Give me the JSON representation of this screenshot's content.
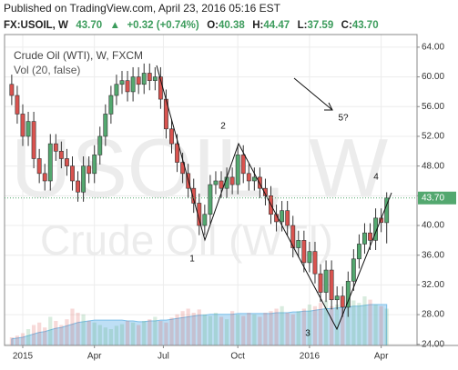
{
  "header": {
    "published": "Published on TradingView.com, April 23, 2016 05:16 EST",
    "symbol": "FX:USOIL, W",
    "price": "43.70",
    "change": "+0.32 (+0.74%)",
    "ohlc": [
      {
        "label": "O:",
        "value": "40.38"
      },
      {
        "label": "H:",
        "value": "44.47"
      },
      {
        "label": "L:",
        "value": "37.59"
      },
      {
        "label": "C:",
        "value": "43.70"
      }
    ]
  },
  "chart_data": {
    "type": "candlestick",
    "legend": [
      "Crude Oil (WTI), W, FXCM",
      "Vol (20, false)"
    ],
    "watermark": [
      "USOIL, W",
      "Crude Oil (WTI)"
    ],
    "annotations": [
      "1",
      "2",
      "3",
      "4",
      "5?"
    ],
    "up_color": "#53a86f",
    "down_color": "#d9534f",
    "xlim": [
      -1.3,
      73.5
    ],
    "xticks": [
      {
        "value": 2,
        "label": "2015"
      },
      {
        "value": 15,
        "label": "Apr"
      },
      {
        "value": 27.5,
        "label": "Jul"
      },
      {
        "value": 41,
        "label": "Oct"
      },
      {
        "value": 54,
        "label": "2016"
      },
      {
        "value": 67,
        "label": "Apr"
      }
    ],
    "ylim": [
      23.85,
      65.7
    ],
    "yticks": [
      {
        "value": 64,
        "label": "64.00"
      },
      {
        "value": 60,
        "label": "60.00"
      },
      {
        "value": 56,
        "label": "56.00"
      },
      {
        "value": 52,
        "label": "52.00"
      },
      {
        "value": 48,
        "label": "48.00"
      },
      {
        "value": 44,
        "label": "44.00"
      },
      {
        "value": 40,
        "label": "40.00"
      },
      {
        "value": 36,
        "label": "36.00"
      },
      {
        "value": 32,
        "label": "32.00"
      },
      {
        "value": 28,
        "label": "28.00"
      },
      {
        "value": 24,
        "label": "24.00"
      }
    ],
    "last_price": {
      "value": 43.7,
      "label": "43.70"
    },
    "grid": true,
    "open": [
      59,
      57.5,
      55,
      52,
      54,
      49,
      47,
      46,
      51,
      50,
      49,
      48,
      46,
      44.5,
      48,
      47,
      49.5,
      52,
      55,
      57.5,
      59,
      59.5,
      58,
      60,
      59,
      60.5,
      59.5,
      60,
      57,
      53,
      51,
      48.5,
      47,
      45,
      43,
      40,
      41.5,
      45.5,
      46,
      45,
      46.5,
      45.5,
      49.5,
      47,
      46,
      46.5,
      45,
      44,
      41.5,
      40.5,
      42,
      40,
      37,
      38,
      35,
      36.5,
      33.5,
      31,
      34,
      30,
      30.5,
      29,
      32.5,
      35.5,
      37.5,
      39,
      38,
      41,
      40.38
    ],
    "high": [
      60.3,
      58.8,
      56.3,
      55.3,
      55.3,
      50.3,
      48.3,
      52.3,
      52.3,
      51.3,
      50.3,
      49.3,
      47.3,
      49.3,
      49.3,
      50.8,
      53.3,
      56.3,
      58.8,
      60.3,
      60.8,
      60.8,
      61.3,
      61.3,
      61.8,
      61.8,
      61.3,
      61.3,
      58.3,
      54.3,
      52.3,
      49.8,
      48.3,
      46.3,
      44.3,
      42.8,
      46.8,
      47.3,
      47.3,
      47.8,
      47.8,
      50.8,
      50.8,
      48.3,
      47.8,
      47.8,
      46.3,
      45.3,
      42.8,
      43.3,
      43.3,
      41.3,
      39.3,
      39.3,
      37.8,
      37.8,
      34.8,
      35.3,
      35.3,
      31.8,
      31.8,
      33.8,
      36.8,
      38.8,
      40.3,
      40.3,
      42.3,
      42.3,
      44.47
    ],
    "low": [
      56.2,
      53.7,
      50.7,
      50.7,
      47.7,
      45.7,
      44.7,
      44.7,
      48.7,
      47.7,
      46.7,
      44.7,
      43.2,
      43.2,
      45.7,
      45.7,
      48.2,
      50.7,
      53.7,
      56.2,
      57.7,
      56.7,
      56.7,
      57.7,
      57.7,
      58.2,
      58.2,
      55.7,
      51.7,
      49.7,
      47.2,
      45.7,
      43.7,
      41.7,
      38.7,
      38.7,
      40.2,
      44.2,
      43.7,
      43.7,
      44.2,
      44.2,
      45.7,
      44.7,
      44.7,
      43.7,
      42.7,
      40.2,
      39.2,
      39.2,
      38.7,
      35.7,
      35.7,
      33.7,
      33.7,
      32.2,
      29.7,
      29.7,
      28.7,
      28.7,
      27.7,
      27.7,
      31.2,
      34.2,
      36.2,
      36.7,
      36.7,
      39.1,
      37.59
    ],
    "close": [
      57.5,
      55,
      52,
      54,
      49,
      47,
      46,
      51,
      50,
      49,
      48,
      46,
      44.5,
      48,
      47,
      49.5,
      52,
      55,
      57.5,
      59,
      59.5,
      58,
      60,
      59,
      60.5,
      59.5,
      60,
      57,
      53,
      51,
      48.5,
      47,
      45,
      43,
      40,
      41.5,
      45.5,
      46,
      45,
      46.5,
      45.5,
      49.5,
      47,
      46,
      46.5,
      45,
      44,
      41.5,
      40.5,
      42,
      40,
      37,
      38,
      35,
      36.5,
      33.5,
      31,
      34,
      30,
      30.5,
      29,
      32.5,
      35.5,
      37.5,
      39,
      38,
      41,
      40.4,
      43.7
    ],
    "volume": [
      10,
      12,
      15,
      20,
      25,
      28,
      22,
      35,
      30,
      25,
      32,
      45,
      40,
      38,
      30,
      28,
      25,
      22,
      20,
      24,
      26,
      30,
      28,
      25,
      30,
      32,
      35,
      30,
      28,
      34,
      38,
      42,
      45,
      40,
      44,
      38,
      36,
      40,
      35,
      32,
      42,
      38,
      36,
      40,
      38,
      35,
      40,
      42,
      45,
      48,
      40,
      38,
      42,
      45,
      50,
      48,
      52,
      55,
      48,
      50,
      45,
      48,
      55,
      52,
      60,
      56,
      50,
      48,
      45
    ],
    "volume_ma": [
      8,
      9,
      10,
      12,
      14,
      16,
      17,
      19,
      21,
      22,
      24,
      26,
      28,
      29,
      30,
      31,
      31,
      31,
      31,
      31,
      31,
      30,
      30,
      29,
      29,
      30,
      30,
      31,
      31,
      32,
      33,
      34,
      35,
      36,
      37,
      37,
      38,
      38,
      38,
      38,
      38,
      39,
      39,
      39,
      39,
      39,
      39,
      39,
      40,
      40,
      40,
      41,
      41,
      42,
      42,
      43,
      44,
      45,
      45,
      46,
      46,
      47,
      48,
      48,
      49,
      50,
      50,
      50,
      50
    ],
    "volume_lim": [
      0,
      100
    ]
  }
}
